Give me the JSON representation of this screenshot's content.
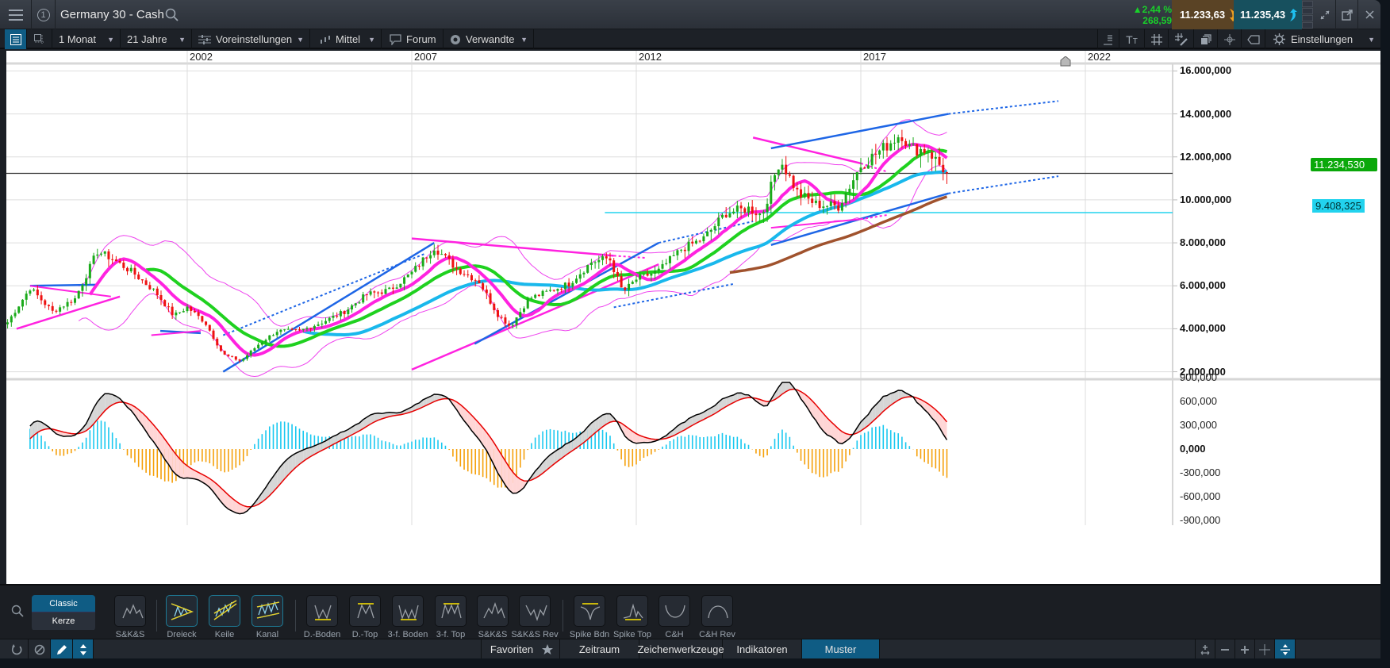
{
  "window": {
    "title": "Germany 30 - Cash",
    "index_badge": "1",
    "change_pct": "▲2,44 %",
    "change_abs": "268,59",
    "bid": "11.233,63",
    "ask": "11.235,43",
    "colors": {
      "bid_bg": "#5a4325",
      "ask_bg": "#17505e",
      "up": "#19d12a",
      "accent": "#0f5c84"
    }
  },
  "toolbar": {
    "interval": "1 Monat",
    "range": "21 Jahre",
    "presets": "Voreinstellungen",
    "chart_size": "Mittel",
    "forum": "Forum",
    "related": "Verwandte",
    "settings": "Einstellungen"
  },
  "chart_data": {
    "type": "candlestick",
    "title": "Germany 30 - Cash",
    "interval": "1 Monat",
    "x_tick_labels": [
      "2002",
      "2007",
      "2012",
      "2017",
      "2022"
    ],
    "y_tick_labels": [
      "16.000,000",
      "14.000,000",
      "12.000,000",
      "10.000,000",
      "8.000,000",
      "6.000,000",
      "4.000,000",
      "2.000,000"
    ],
    "ylim": [
      1800,
      16200
    ],
    "last_price_label": "11.234,530",
    "horizontal_line_label": "9.408,325",
    "horizontal_line_value": 9408.325,
    "last_price_value": 11234.53,
    "price_path_approx": [
      [
        1998.0,
        4300
      ],
      [
        1998.5,
        5900
      ],
      [
        1999.0,
        4800
      ],
      [
        1999.5,
        5400
      ],
      [
        2000.0,
        7600
      ],
      [
        2000.3,
        7300
      ],
      [
        2000.8,
        6600
      ],
      [
        2001.3,
        5700
      ],
      [
        2001.7,
        4600
      ],
      [
        2002.0,
        5000
      ],
      [
        2002.4,
        4300
      ],
      [
        2002.8,
        2800
      ],
      [
        2003.2,
        2500
      ],
      [
        2003.6,
        3300
      ],
      [
        2004.0,
        3900
      ],
      [
        2004.5,
        3900
      ],
      [
        2005.0,
        4300
      ],
      [
        2005.5,
        4800
      ],
      [
        2006.0,
        5600
      ],
      [
        2006.5,
        5800
      ],
      [
        2007.0,
        6600
      ],
      [
        2007.5,
        7800
      ],
      [
        2008.0,
        6800
      ],
      [
        2008.5,
        6200
      ],
      [
        2008.9,
        4700
      ],
      [
        2009.2,
        4100
      ],
      [
        2009.6,
        5400
      ],
      [
        2010.0,
        5700
      ],
      [
        2010.5,
        6100
      ],
      [
        2011.0,
        7100
      ],
      [
        2011.4,
        7300
      ],
      [
        2011.7,
        5700
      ],
      [
        2012.0,
        6300
      ],
      [
        2012.5,
        6700
      ],
      [
        2013.0,
        7700
      ],
      [
        2013.5,
        8200
      ],
      [
        2014.0,
        9400
      ],
      [
        2014.5,
        9600
      ],
      [
        2014.8,
        9300
      ],
      [
        2015.2,
        11900
      ],
      [
        2015.6,
        10300
      ],
      [
        2016.0,
        9800
      ],
      [
        2016.5,
        9700
      ],
      [
        2017.0,
        11600
      ],
      [
        2017.5,
        12400
      ],
      [
        2017.9,
        13100
      ],
      [
        2018.1,
        12400
      ],
      [
        2018.5,
        12300
      ],
      [
        2018.8,
        11500
      ],
      [
        2018.95,
        11235
      ]
    ],
    "moving_averages": [
      {
        "name": "MA magenta",
        "color": "#ff22e0"
      },
      {
        "name": "MA green",
        "color": "#1fd11f"
      },
      {
        "name": "MA light-blue",
        "color": "#19b8ec"
      },
      {
        "name": "MA brown",
        "color": "#a0522d"
      }
    ],
    "bollinger_color": "#ee44ee",
    "macd_panel": {
      "y_tick_labels": [
        "900,000",
        "600,000",
        "300,000",
        "0,000",
        "-300,000",
        "-600,000",
        "-900,000"
      ],
      "ylim": [
        -1000,
        1000
      ],
      "macd_color": "#000000",
      "signal_color": "#e60000",
      "hist_pos_color": "#19c8f0",
      "hist_neg_color": "#f5a00a"
    }
  },
  "patterns": {
    "style_classic": "Classic",
    "style_candle": "Kerze",
    "items": [
      {
        "label": "S&K&S",
        "selected": false
      },
      {
        "label": "Dreieck",
        "selected": true
      },
      {
        "label": "Keile",
        "selected": true
      },
      {
        "label": "Kanal",
        "selected": true
      },
      {
        "label": "D.-Boden",
        "selected": false
      },
      {
        "label": "D.-Top",
        "selected": false
      },
      {
        "label": "3-f. Boden",
        "selected": false
      },
      {
        "label": "3-f. Top",
        "selected": false
      },
      {
        "label": "S&K&S",
        "selected": false
      },
      {
        "label": "S&K&S Rev",
        "selected": false
      },
      {
        "label": "Spike Bdn",
        "selected": false
      },
      {
        "label": "Spike Top",
        "selected": false
      },
      {
        "label": "C&H",
        "selected": false
      },
      {
        "label": "C&H Rev",
        "selected": false
      }
    ]
  },
  "bottom_tabs": {
    "favorites": "Favoriten",
    "period": "Zeitraum",
    "drawing_tools": "Zeichenwerkzeuge",
    "indicators": "Indikatoren",
    "patterns": "Muster"
  }
}
